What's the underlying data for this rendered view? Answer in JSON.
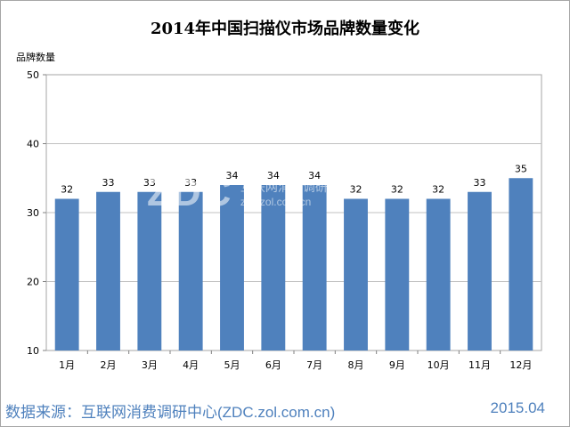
{
  "chart_data": {
    "type": "bar",
    "title": "2014年中国扫描仪市场品牌数量变化",
    "ylabel": "品牌数量",
    "xlabel": "",
    "categories": [
      "1月",
      "2月",
      "3月",
      "4月",
      "5月",
      "6月",
      "7月",
      "8月",
      "9月",
      "10月",
      "11月",
      "12月"
    ],
    "values": [
      32,
      33,
      33,
      33,
      34,
      34,
      34,
      32,
      32,
      32,
      33,
      35
    ],
    "ylim": [
      10,
      50
    ],
    "yticks": [
      10,
      20,
      30,
      40,
      50
    ],
    "grid": true,
    "bar_color": "#4f81bd"
  },
  "watermark": {
    "logo": "ZDC",
    "text": "互联网消费调研中心",
    "url": "zdc.zol.com.cn"
  },
  "footer": {
    "source": "数据来源：互联网消费调研中心(ZDC.zol.com.cn)",
    "date": "2015.04",
    "color": "#4f81bd"
  }
}
